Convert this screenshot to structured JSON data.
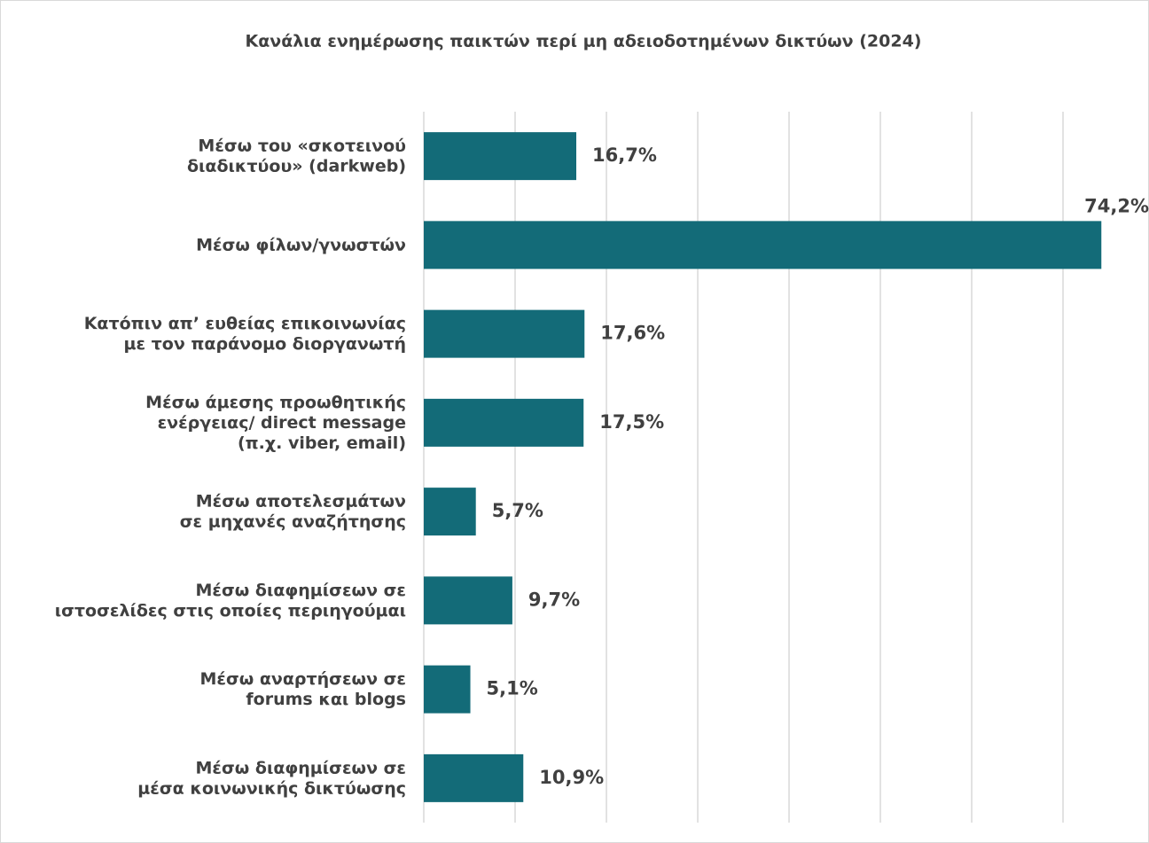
{
  "chart_data": {
    "type": "barh",
    "title": "Κανάλια ενημέρωσης παικτών περί μη αδειοδοτημένων δικτύων (2024)",
    "categories": [
      "Μέσω του «σκοτεινού\nδιαδικτύου» (darkweb)",
      "Μέσω φίλων/γνωστών",
      "Κατόπιν απ’ ευθείας επικοινωνίας\nμε τον παράνομο διοργανωτή",
      "Μέσω άμεσης προωθητικής\nενέργειας/ direct message\n(π.χ. viber, email)",
      "Μέσω αποτελεσμάτων\nσε μηχανές αναζήτησης",
      "Μέσω διαφημίσεων σε\nιστοσελίδες στις οποίες περιηγούμαι",
      "Μέσω αναρτήσεων σε\nforums και blogs",
      "Μέσω διαφημίσεων σε\nμέσα κοινωνικής δικτύωσης"
    ],
    "values": [
      16.7,
      74.2,
      17.6,
      17.5,
      5.7,
      9.7,
      5.1,
      10.9
    ],
    "value_labels": [
      "16,7%",
      "74,2%",
      "17,6%",
      "17,5%",
      "5,7%",
      "9,7%",
      "5,1%",
      "10,9%"
    ],
    "color": "#136b78",
    "xlim": [
      0,
      70
    ],
    "xticks": [
      0,
      10,
      20,
      30,
      40,
      50,
      60,
      70
    ],
    "grid": true
  }
}
